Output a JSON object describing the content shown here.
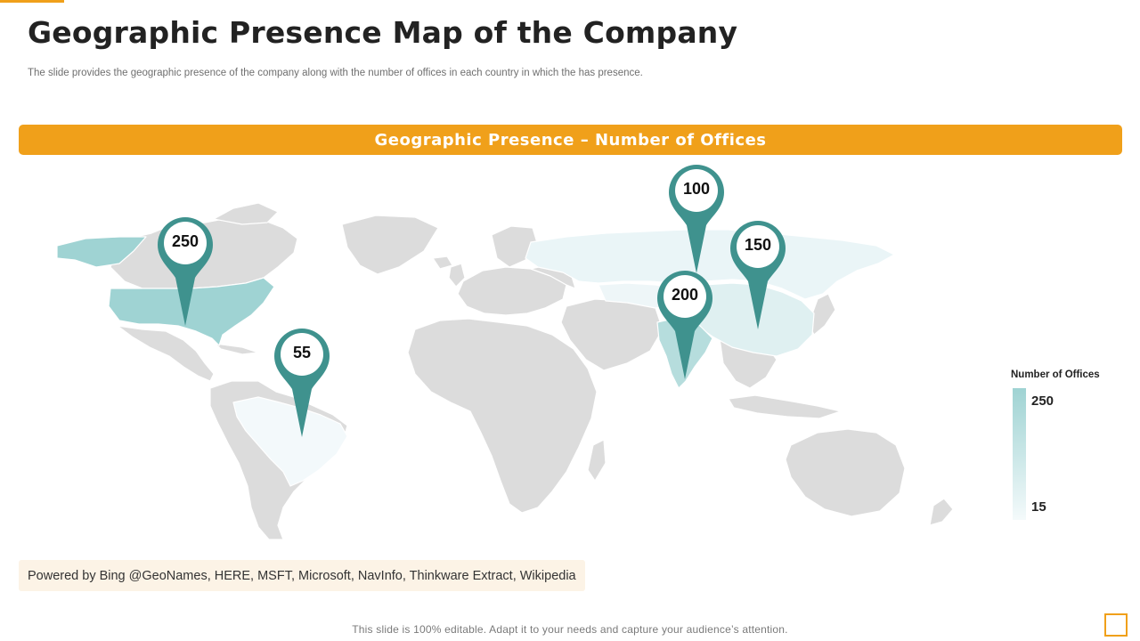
{
  "header": {
    "title": "Geographic Presence Map of the Company",
    "subtitle": "The slide provides the geographic presence of the company along with the number of offices in each country in which the has presence."
  },
  "banner": {
    "label": "Geographic Presence – Number of Offices"
  },
  "map": {
    "markers": [
      {
        "country": "United States",
        "value": "250"
      },
      {
        "country": "Brazil",
        "value": "55"
      },
      {
        "country": "Russia",
        "value": "100"
      },
      {
        "country": "India",
        "value": "200"
      },
      {
        "country": "China",
        "value": "150"
      }
    ]
  },
  "legend": {
    "title": "Number of Offices",
    "max": "250",
    "min": "15"
  },
  "attribution": "Powered by Bing @GeoNames, HERE, MSFT, Microsoft, NavInfo, Thinkware Extract, Wikipedia",
  "footer": "This slide is 100% editable. Adapt it to your needs and capture your audience’s attention.",
  "colors": {
    "accent": "#f0a01a",
    "pin": "#3f928e",
    "land": "#dcdcdc",
    "scale_high": "#9fd3d3",
    "scale_low": "#f4fafb"
  }
}
